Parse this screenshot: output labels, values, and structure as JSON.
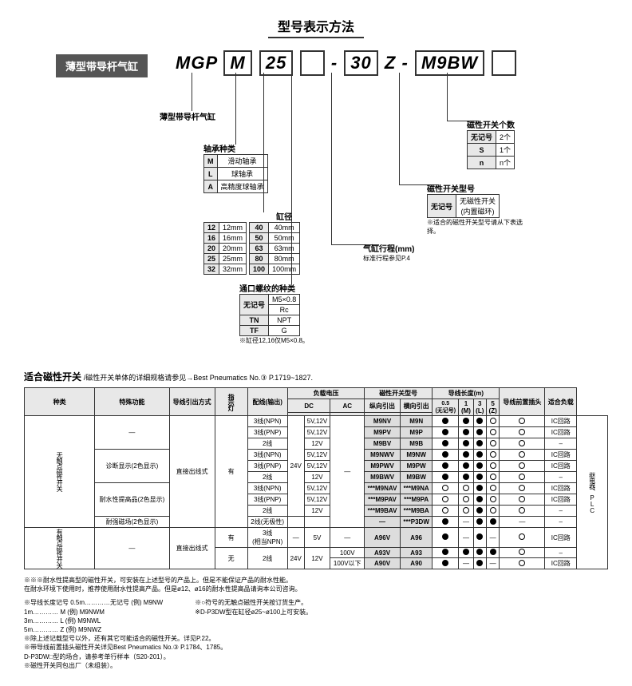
{
  "title": "型号表示方法",
  "badge": "薄型带导杆气缸",
  "partcode": {
    "p1": "MGP",
    "p2": "M",
    "p3": "25",
    "gap": " ",
    "dash1": "-",
    "p5": "30",
    "p6": "Z",
    "dash2": "-",
    "p7": "M9BW"
  },
  "callout1": {
    "label": "薄型带导杆气缸"
  },
  "callout2": {
    "label": "轴承种类",
    "rows": [
      [
        "M",
        "滑动轴承"
      ],
      [
        "L",
        "球轴承"
      ],
      [
        "A",
        "高精度球轴承"
      ]
    ]
  },
  "callout3": {
    "label": "缸径",
    "rowsL": [
      [
        "12",
        "12mm"
      ],
      [
        "16",
        "16mm"
      ],
      [
        "20",
        "20mm"
      ],
      [
        "25",
        "25mm"
      ],
      [
        "32",
        "32mm"
      ]
    ],
    "rowsR": [
      [
        "40",
        "40mm"
      ],
      [
        "50",
        "50mm"
      ],
      [
        "63",
        "63mm"
      ],
      [
        "80",
        "80mm"
      ],
      [
        "100",
        "100mm"
      ]
    ]
  },
  "callout4": {
    "label": "通口螺纹的种类",
    "rows": [
      [
        "无记号",
        "M5×0.8"
      ],
      [
        "",
        "Rc"
      ],
      [
        "TN",
        "NPT"
      ],
      [
        "TF",
        "G"
      ]
    ],
    "note": "※缸径12,16仅M5×0.8。"
  },
  "callout5": {
    "label": "气缸行程(mm)",
    "note": "标准行程参见P.4"
  },
  "callout6": {
    "label": "磁性开关型号",
    "rows": [
      [
        "无记号",
        "无磁性开关\n(内置磁环)"
      ]
    ],
    "note": "※适合的磁性开关型号请从下表选择。"
  },
  "callout7": {
    "label": "磁性开关个数",
    "rows": [
      [
        "无记号",
        "2个"
      ],
      [
        "S",
        "1个"
      ],
      [
        "n",
        "n个"
      ]
    ]
  },
  "section2": {
    "title": "适合磁性开关",
    "sub": "/磁性开关单体的详细规格请参见→Best Pneumatics No.③ P.1719~1827.",
    "headers": {
      "h_type": "种类",
      "h_func": "特殊功能",
      "h_lead": "导线引出方式",
      "h_ind": "指示灯",
      "h_wire": "配线(输出)",
      "h_volt": "负载电压",
      "h_dc": "DC",
      "h_ac": "AC",
      "h_model": "磁性开关型号",
      "h_vert": "纵向引出",
      "h_horz": "横向引出",
      "h_leadlen": "导线长度(m)",
      "h_05": "0.5\n(无记号)",
      "h_1": "1\n(M)",
      "h_3": "3\n(L)",
      "h_5": "5\n(Z)",
      "h_conn": "导线前置插头",
      "h_load": "适合负载"
    },
    "rows": [
      {
        "t": "无触点磁性开关",
        "f": "—",
        "lead": "直接出线式",
        "ind": "有",
        "w": "3线(NPN)",
        "dc": "24V",
        "dcv": "5V,12V",
        "ac": "—",
        "v": "M9NV",
        "h": "M9N",
        "l": [
          "d",
          "d",
          "d",
          "c",
          "c"
        ],
        "ld": "IC回路"
      },
      {
        "w": "3线(PNP)",
        "dcv": "5V,12V",
        "v": "M9PV",
        "h": "M9P",
        "l": [
          "d",
          "d",
          "d",
          "c",
          "c"
        ],
        "ld": "IC回路"
      },
      {
        "w": "2线",
        "dcv": "12V",
        "v": "M9BV",
        "h": "M9B",
        "l": [
          "d",
          "d",
          "d",
          "c",
          "c"
        ],
        "ld": "–"
      },
      {
        "f": "诊断显示(2色显示)",
        "w": "3线(NPN)",
        "dcv": "5V,12V",
        "v": "M9NWV",
        "h": "M9NW",
        "l": [
          "d",
          "d",
          "d",
          "c",
          "c"
        ],
        "ld": "IC回路"
      },
      {
        "w": "3线(PNP)",
        "dcv": "5V,12V",
        "v": "M9PWV",
        "h": "M9PW",
        "l": [
          "d",
          "d",
          "d",
          "c",
          "c"
        ],
        "ld": "IC回路"
      },
      {
        "w": "2线",
        "dcv": "12V",
        "v": "M9BWV",
        "h": "M9BW",
        "l": [
          "d",
          "d",
          "d",
          "c",
          "c"
        ],
        "ld": "–"
      },
      {
        "f": "耐水性提高品(2色显示)",
        "w": "3线(NPN)",
        "dcv": "5V,12V",
        "v": "***M9NAV",
        "h": "***M9NA",
        "l": [
          "c",
          "c",
          "d",
          "c",
          "c"
        ],
        "ld": "IC回路"
      },
      {
        "w": "3线(PNP)",
        "dcv": "5V,12V",
        "v": "***M9PAV",
        "h": "***M9PA",
        "l": [
          "c",
          "c",
          "d",
          "c",
          "c"
        ],
        "ld": "IC回路"
      },
      {
        "w": "2线",
        "dcv": "12V",
        "v": "***M9BAV",
        "h": "***M9BA",
        "l": [
          "c",
          "c",
          "d",
          "c",
          "c"
        ],
        "ld": "–"
      },
      {
        "f": "耐强磁场(2色显示)",
        "w": "2线(无极性)",
        "dcv": "",
        "v": "—",
        "h": "***P3DW",
        "l": [
          "d",
          "",
          "d",
          "d",
          ""
        ],
        "ld": "–"
      },
      {
        "t": "有触点磁性开关",
        "f": "—",
        "lead": "直接出线式",
        "ind": "有",
        "w": "3线\n(相当NPN)",
        "dc": "—",
        "dcv": "5V",
        "ac": "—",
        "v": "A96V",
        "h": "A96",
        "l": [
          "d",
          "",
          "d",
          "",
          "c"
        ],
        "ld": "IC回路"
      },
      {
        "ind": "无",
        "w": "2线",
        "dc": "24V",
        "dcv": "12V",
        "ac": "100V",
        "v": "A93V",
        "h": "A93",
        "l": [
          "d",
          "d",
          "d",
          "d",
          "c"
        ],
        "ld": "–"
      },
      {
        "ac": "100V以下",
        "v": "A90V",
        "h": "A90",
        "l": [
          "d",
          "",
          "d",
          "",
          "c"
        ],
        "ld": "IC回路"
      }
    ],
    "loadside": "继电器、PLC"
  },
  "footnotes": {
    "n1": "※※※耐水性提高型的磁性开关，可安装在上述型号的产品上。但是不能保证产品的耐水性能。",
    "n2": "    在耐水环境下使用时，推荐使用耐水性提高产品。但是ø12、ø16的耐水性提高品请询本公司咨询。",
    "n3": "※导线长度记号 0.5m…………无记号  (例) M9NW",
    "n4": "             1m…………  M    (例) M9NWM",
    "n5": "             3m…………  L    (例) M9NWL",
    "n6": "             5m…………  Z    (例) M9NWZ",
    "n7": "※○符号的无触点磁性开关按订货生产。",
    "n8": "※D-P3DW型在缸径ø25~ø100上可安装。",
    "n9": "※除上述记载型号以外，还有其它可能适合的磁性开关。详见P.22。",
    "n10": "※带导线前置插头磁性开关详见Best Pneumatics No.③ P.1784、1785。",
    "n11": "   D-P3DW□型的场合，请参考单行样本（S20-201）。",
    "n12": "※磁性开关同包出厂（未组装）。"
  }
}
